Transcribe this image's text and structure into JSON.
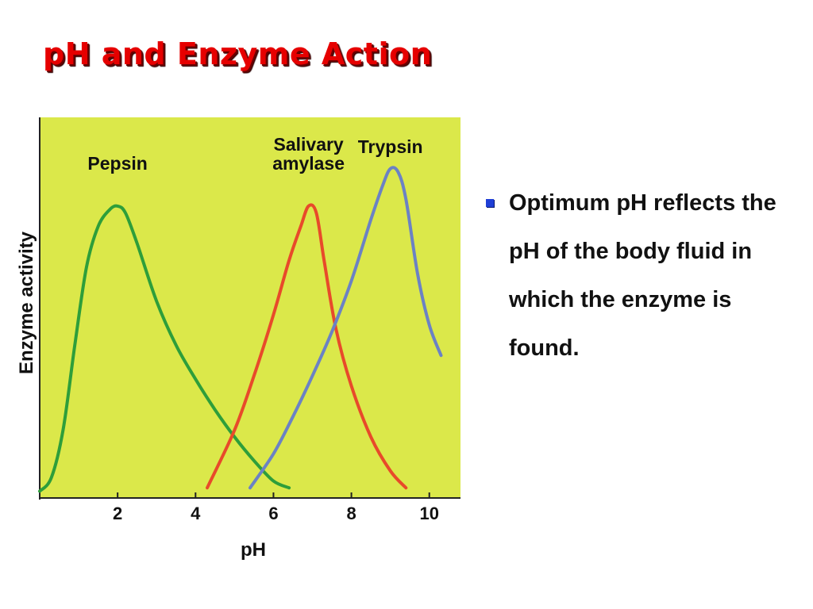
{
  "slide": {
    "title": "pH and Enzyme Action",
    "bullet_text": "Optimum pH reflects the pH of the body fluid in which the enzyme is found.",
    "bullet_color": "#1f3fd6",
    "title_color": "#e60000"
  },
  "chart_data": {
    "type": "line",
    "title": "",
    "xlabel": "pH",
    "ylabel": "Enzyme activity",
    "xlim": [
      0,
      10.8
    ],
    "x_ticks": [
      2,
      4,
      6,
      8,
      10
    ],
    "x_tick_labels": [
      "2",
      "4",
      "6",
      "8",
      "10"
    ],
    "y_ticks": [],
    "plot_background": "#dbe84a",
    "grid": false,
    "series": [
      {
        "name": "Pepsin",
        "color": "#2e9e3a",
        "points": [
          [
            0,
            0.02
          ],
          [
            0.3,
            0.06
          ],
          [
            0.6,
            0.2
          ],
          [
            0.9,
            0.45
          ],
          [
            1.2,
            0.68
          ],
          [
            1.5,
            0.8
          ],
          [
            1.8,
            0.85
          ],
          [
            2.0,
            0.86
          ],
          [
            2.2,
            0.84
          ],
          [
            2.5,
            0.75
          ],
          [
            3.0,
            0.58
          ],
          [
            3.5,
            0.45
          ],
          [
            4.0,
            0.35
          ],
          [
            4.5,
            0.26
          ],
          [
            5.0,
            0.18
          ],
          [
            5.5,
            0.11
          ],
          [
            6.0,
            0.05
          ],
          [
            6.4,
            0.03
          ]
        ]
      },
      {
        "name": "Salivary amylase",
        "color": "#e84a2a",
        "points": [
          [
            4.3,
            0.03
          ],
          [
            5.0,
            0.2
          ],
          [
            5.5,
            0.36
          ],
          [
            6.0,
            0.54
          ],
          [
            6.4,
            0.7
          ],
          [
            6.7,
            0.8
          ],
          [
            6.9,
            0.86
          ],
          [
            7.1,
            0.84
          ],
          [
            7.3,
            0.7
          ],
          [
            7.6,
            0.5
          ],
          [
            8.0,
            0.33
          ],
          [
            8.5,
            0.18
          ],
          [
            9.0,
            0.08
          ],
          [
            9.4,
            0.03
          ]
        ]
      },
      {
        "name": "Trypsin",
        "color": "#6b82c4",
        "points": [
          [
            5.4,
            0.03
          ],
          [
            6.0,
            0.13
          ],
          [
            6.5,
            0.24
          ],
          [
            7.0,
            0.36
          ],
          [
            7.5,
            0.49
          ],
          [
            8.0,
            0.64
          ],
          [
            8.5,
            0.82
          ],
          [
            8.8,
            0.92
          ],
          [
            9.0,
            0.97
          ],
          [
            9.2,
            0.96
          ],
          [
            9.4,
            0.88
          ],
          [
            9.7,
            0.66
          ],
          [
            10.0,
            0.51
          ],
          [
            10.3,
            0.42
          ]
        ]
      }
    ],
    "series_labels": [
      {
        "series": "Pepsin",
        "lines": [
          "Pepsin"
        ]
      },
      {
        "series": "Salivary amylase",
        "lines": [
          "Salivary",
          "amylase"
        ]
      },
      {
        "series": "Trypsin",
        "lines": [
          "Trypsin"
        ]
      }
    ]
  }
}
